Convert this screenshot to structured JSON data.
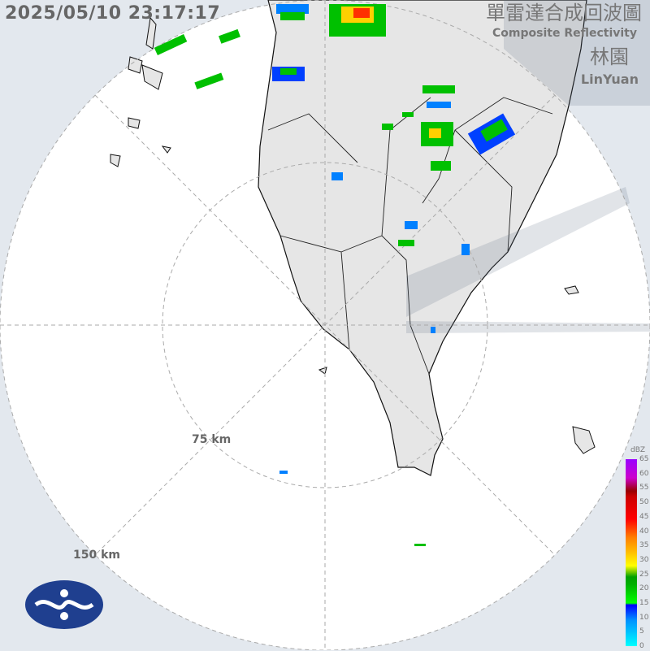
{
  "header": {
    "timestamp": "2025/05/10 23:17:17",
    "title_zh": "單雷達合成回波圖",
    "title_en": "Composite Reflectivity",
    "station_zh": "林園",
    "station_en": "LinYuan"
  },
  "rings": [
    {
      "label": "75 km"
    },
    {
      "label": "150 km"
    }
  ],
  "legend": {
    "unit": "dBZ",
    "ticks": [
      "65",
      "60",
      "55",
      "50",
      "45",
      "40",
      "35",
      "30",
      "25",
      "20",
      "15",
      "10",
      "5",
      "0"
    ]
  },
  "colors": {
    "background": "#e3e8ee",
    "land": "#e6e6e6",
    "coast": "#111111",
    "echo_light": "#0080ff",
    "echo_mid": "#00c000",
    "echo_heavy": "#ff3000"
  },
  "logo": {
    "icon": "cwa-logo-icon"
  }
}
